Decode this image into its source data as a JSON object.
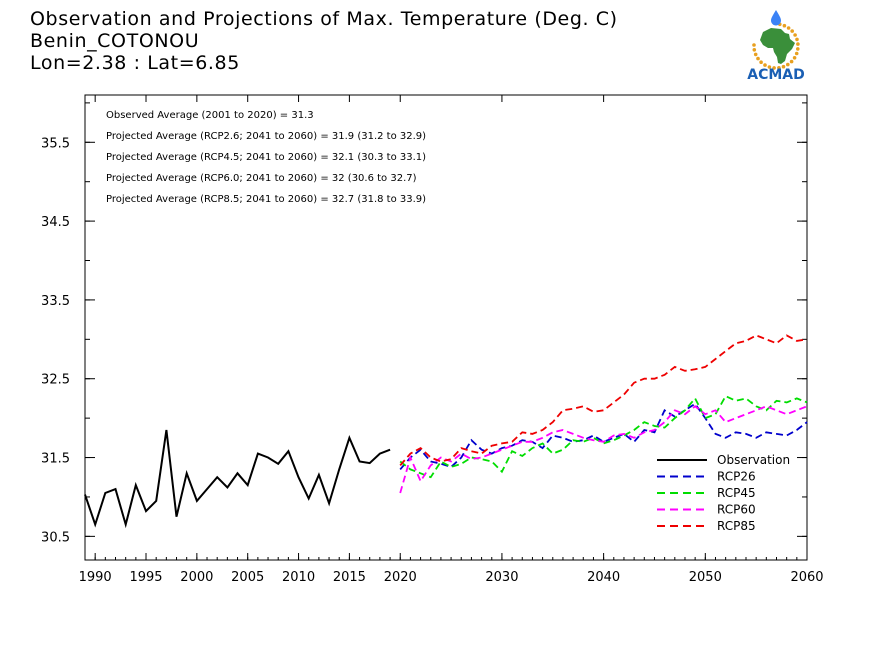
{
  "header": {
    "title": "Observation and Projections of Max. Temperature (Deg. C)",
    "location": "Benin_COTONOU",
    "coords": "Lon=2.38 : Lat=6.85"
  },
  "logo": {
    "text": "ACMAD",
    "colors": {
      "africa": "#3a8f3a",
      "ring": "#e8a020",
      "text": "#1a5fb4",
      "drop": "#3b82f6"
    }
  },
  "chart_data": {
    "type": "line",
    "xlim": [
      1989,
      2060
    ],
    "ylim": [
      30.2,
      36.1
    ],
    "x_ticks": [
      1990,
      1995,
      2000,
      2005,
      2010,
      2015,
      2020,
      2030,
      2040,
      2050,
      2060
    ],
    "y_ticks": [
      30.5,
      31.5,
      32.5,
      33.5,
      34.5,
      35.5
    ],
    "y_ticks_labels": [
      "30.5",
      "31.5",
      "32.5",
      "33.5",
      "34.5",
      "35.5"
    ],
    "annotations": [
      "Observed Average (2001 to 2020) = 31.3",
      "Projected Average (RCP2.6; 2041 to 2060) = 31.9 (31.2 to 32.9)",
      "Projected Average (RCP4.5; 2041 to 2060) = 32.1 (30.3 to 33.1)",
      "Projected Average (RCP6.0; 2041 to 2060) = 32 (30.6 to 32.7)",
      "Projected Average (RCP8.5; 2041 to 2060) = 32.7 (31.8 to 33.9)"
    ],
    "series": [
      {
        "name": "Observation",
        "color": "#000000",
        "dash": false,
        "x": [
          1989,
          1990,
          1991,
          1992,
          1993,
          1994,
          1995,
          1996,
          1997,
          1998,
          1999,
          2000,
          2001,
          2002,
          2003,
          2004,
          2005,
          2006,
          2007,
          2008,
          2009,
          2010,
          2011,
          2012,
          2013,
          2014,
          2015,
          2016,
          2017,
          2018,
          2019
        ],
        "y": [
          31.03,
          30.65,
          31.05,
          31.1,
          30.65,
          31.15,
          30.82,
          30.95,
          31.85,
          30.75,
          31.3,
          30.95,
          31.1,
          31.25,
          31.12,
          31.3,
          31.15,
          31.55,
          31.5,
          31.42,
          31.58,
          31.25,
          30.98,
          31.28,
          30.92,
          31.35,
          31.75,
          31.45,
          31.43,
          31.55,
          31.6
        ]
      },
      {
        "name": "RCP26",
        "color": "#0000cc",
        "dash": true,
        "x": [
          2020,
          2021,
          2022,
          2023,
          2024,
          2025,
          2026,
          2027,
          2028,
          2029,
          2030,
          2031,
          2032,
          2033,
          2034,
          2035,
          2036,
          2037,
          2038,
          2039,
          2040,
          2041,
          2042,
          2043,
          2044,
          2045,
          2046,
          2047,
          2048,
          2049,
          2050,
          2051,
          2052,
          2053,
          2054,
          2055,
          2056,
          2057,
          2058,
          2059,
          2060
        ],
        "y": [
          31.35,
          31.5,
          31.6,
          31.45,
          31.42,
          31.38,
          31.5,
          31.72,
          31.6,
          31.55,
          31.62,
          31.65,
          31.72,
          31.7,
          31.62,
          31.78,
          31.75,
          31.7,
          31.72,
          31.78,
          31.7,
          31.75,
          31.8,
          31.7,
          31.85,
          31.82,
          32.1,
          32.02,
          32.1,
          32.18,
          32.0,
          31.8,
          31.75,
          31.82,
          31.8,
          31.75,
          31.82,
          31.8,
          31.78,
          31.85,
          31.95
        ]
      },
      {
        "name": "RCP45",
        "color": "#00dd00",
        "dash": true,
        "x": [
          2020,
          2021,
          2022,
          2023,
          2024,
          2025,
          2026,
          2027,
          2028,
          2029,
          2030,
          2031,
          2032,
          2033,
          2034,
          2035,
          2036,
          2037,
          2038,
          2039,
          2040,
          2041,
          2042,
          2043,
          2044,
          2045,
          2046,
          2047,
          2048,
          2049,
          2050,
          2051,
          2052,
          2053,
          2054,
          2055,
          2056,
          2057,
          2058,
          2059,
          2060
        ],
        "y": [
          31.45,
          31.35,
          31.3,
          31.25,
          31.45,
          31.38,
          31.42,
          31.5,
          31.48,
          31.45,
          31.32,
          31.58,
          31.52,
          31.62,
          31.68,
          31.55,
          31.6,
          31.72,
          31.7,
          31.75,
          31.68,
          31.72,
          31.78,
          31.85,
          31.95,
          31.9,
          31.88,
          32.0,
          32.1,
          32.25,
          32.0,
          32.05,
          32.28,
          32.22,
          32.25,
          32.15,
          32.1,
          32.22,
          32.2,
          32.25,
          32.2
        ]
      },
      {
        "name": "RCP60",
        "color": "#ff00ff",
        "dash": true,
        "x": [
          2020,
          2021,
          2022,
          2023,
          2024,
          2025,
          2026,
          2027,
          2028,
          2029,
          2030,
          2031,
          2032,
          2033,
          2034,
          2035,
          2036,
          2037,
          2038,
          2039,
          2040,
          2041,
          2042,
          2043,
          2044,
          2045,
          2046,
          2047,
          2048,
          2049,
          2050,
          2051,
          2052,
          2053,
          2054,
          2055,
          2056,
          2057,
          2058,
          2059,
          2060
        ],
        "y": [
          31.05,
          31.5,
          31.2,
          31.4,
          31.5,
          31.45,
          31.55,
          31.48,
          31.5,
          31.55,
          31.6,
          31.65,
          31.7,
          31.7,
          31.75,
          31.82,
          31.85,
          31.8,
          31.75,
          31.72,
          31.7,
          31.78,
          31.8,
          31.75,
          31.82,
          31.85,
          31.95,
          32.1,
          32.05,
          32.15,
          32.05,
          32.1,
          31.95,
          32.0,
          32.05,
          32.1,
          32.15,
          32.1,
          32.05,
          32.1,
          32.15
        ]
      },
      {
        "name": "RCP85",
        "color": "#ee0000",
        "dash": true,
        "x": [
          2020,
          2021,
          2022,
          2023,
          2024,
          2025,
          2026,
          2027,
          2028,
          2029,
          2030,
          2031,
          2032,
          2033,
          2034,
          2035,
          2036,
          2037,
          2038,
          2039,
          2040,
          2041,
          2042,
          2043,
          2044,
          2045,
          2046,
          2047,
          2048,
          2049,
          2050,
          2051,
          2052,
          2053,
          2054,
          2055,
          2056,
          2057,
          2058,
          2059,
          2060
        ],
        "y": [
          31.4,
          31.55,
          31.62,
          31.5,
          31.45,
          31.48,
          31.62,
          31.58,
          31.55,
          31.65,
          31.68,
          31.7,
          31.82,
          31.8,
          31.85,
          31.95,
          32.1,
          32.12,
          32.15,
          32.08,
          32.1,
          32.2,
          32.3,
          32.45,
          32.5,
          32.5,
          32.55,
          32.65,
          32.6,
          32.62,
          32.65,
          32.75,
          32.85,
          32.95,
          32.98,
          33.05,
          33.0,
          32.95,
          33.05,
          32.98,
          33.0
        ]
      }
    ]
  }
}
